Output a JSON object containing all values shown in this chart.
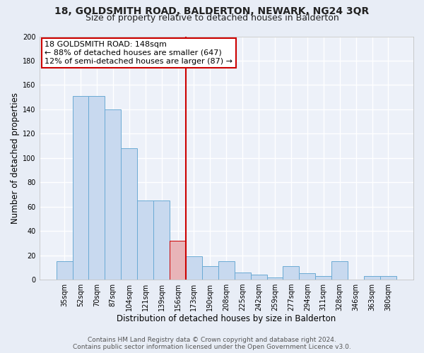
{
  "title1": "18, GOLDSMITH ROAD, BALDERTON, NEWARK, NG24 3QR",
  "title2": "Size of property relative to detached houses in Balderton",
  "xlabel": "Distribution of detached houses by size in Balderton",
  "ylabel": "Number of detached properties",
  "bar_labels": [
    "35sqm",
    "52sqm",
    "70sqm",
    "87sqm",
    "104sqm",
    "121sqm",
    "139sqm",
    "156sqm",
    "173sqm",
    "190sqm",
    "208sqm",
    "225sqm",
    "242sqm",
    "259sqm",
    "277sqm",
    "294sqm",
    "311sqm",
    "328sqm",
    "346sqm",
    "363sqm",
    "380sqm"
  ],
  "bar_heights": [
    15,
    151,
    151,
    140,
    108,
    65,
    65,
    32,
    19,
    11,
    15,
    6,
    4,
    2,
    11,
    5,
    3,
    15,
    0,
    3,
    3
  ],
  "bar_color": "#c8d9ef",
  "bar_edge_color": "#6aaad4",
  "highlight_bar_index": 7,
  "highlight_bar_color": "#e8b4b8",
  "highlight_bar_edge_color": "#cc0000",
  "vline_x": 7,
  "vline_color": "#cc0000",
  "annotation_title": "18 GOLDSMITH ROAD: 148sqm",
  "annotation_line1": "← 88% of detached houses are smaller (647)",
  "annotation_line2": "12% of semi-detached houses are larger (87) →",
  "annotation_box_color": "#ffffff",
  "annotation_box_edge_color": "#cc0000",
  "ylim": [
    0,
    200
  ],
  "yticks": [
    0,
    20,
    40,
    60,
    80,
    100,
    120,
    140,
    160,
    180,
    200
  ],
  "footer1": "Contains HM Land Registry data © Crown copyright and database right 2024.",
  "footer2": "Contains public sector information licensed under the Open Government Licence v3.0.",
  "bg_color": "#e8edf6",
  "plot_bg_color": "#edf1f9",
  "grid_color": "#ffffff",
  "title_fontsize": 10,
  "subtitle_fontsize": 9,
  "axis_label_fontsize": 8.5,
  "tick_fontsize": 7,
  "annotation_fontsize": 8,
  "footer_fontsize": 6.5
}
